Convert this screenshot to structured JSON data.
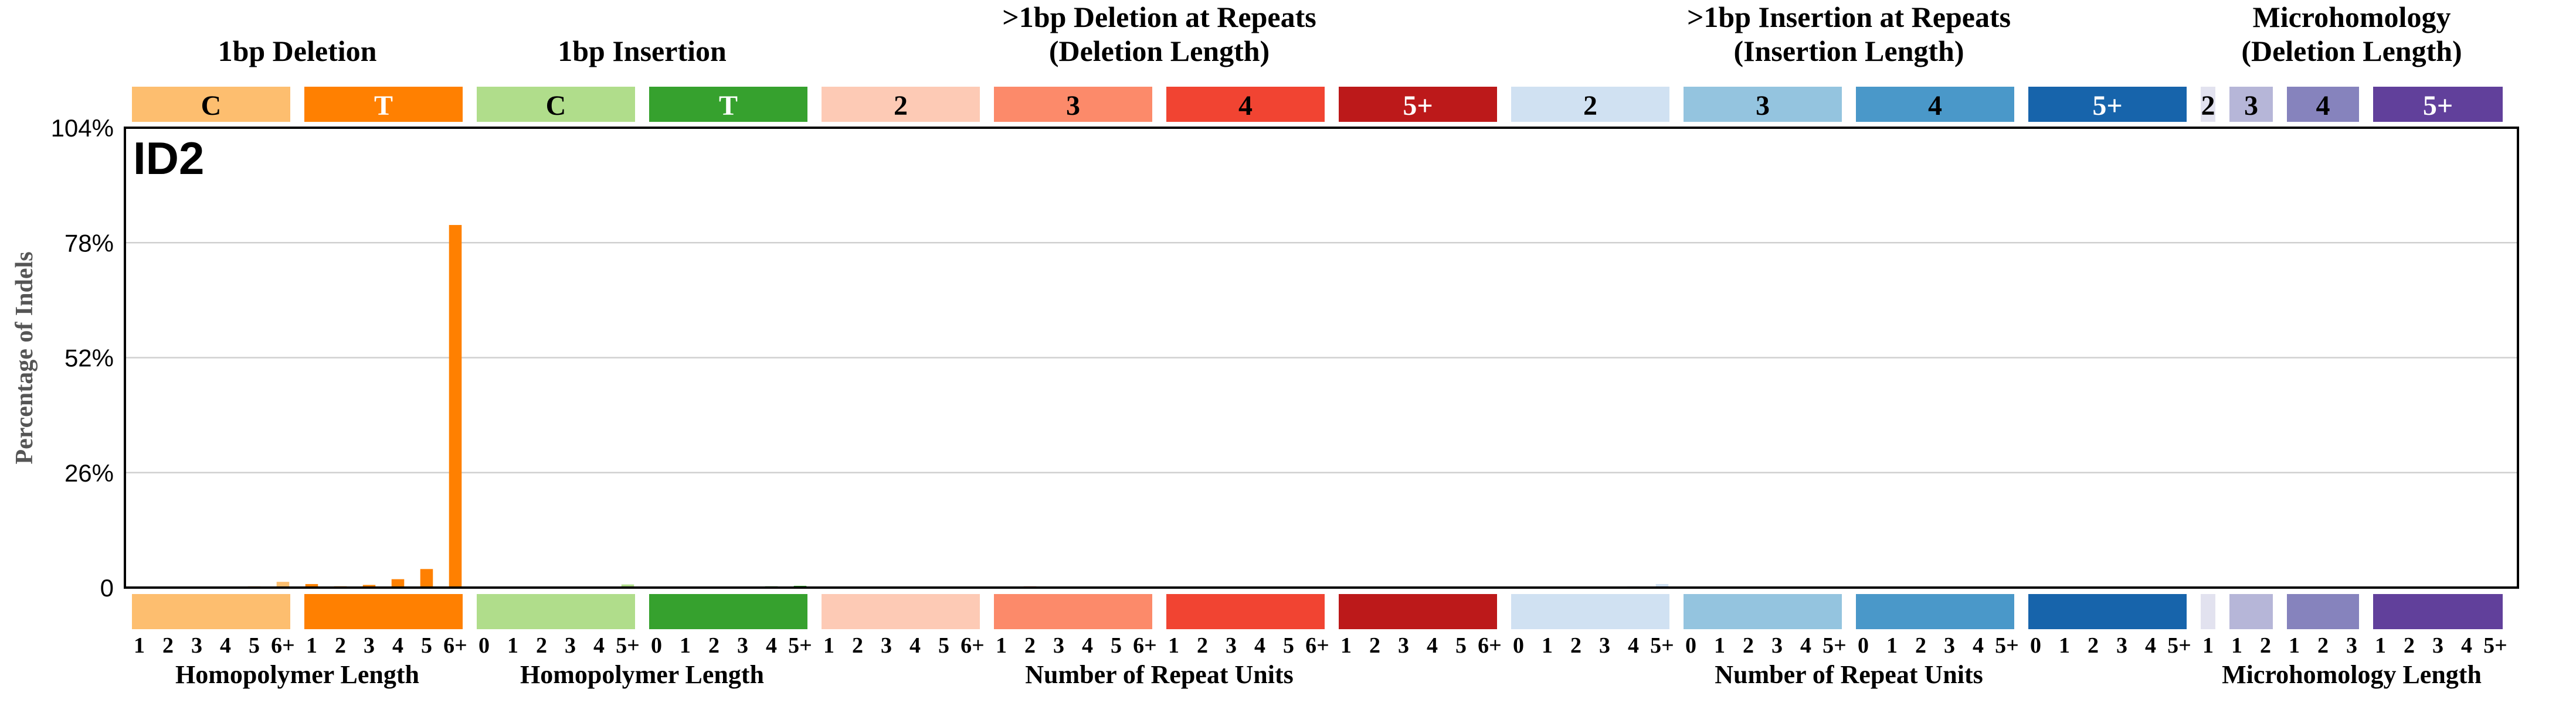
{
  "chart_data": {
    "type": "bar",
    "title": "ID2",
    "ylabel": "Percentage of Indels",
    "ylim": [
      0,
      104
    ],
    "yticks": [
      "0",
      "26%",
      "52%",
      "78%",
      "104%"
    ],
    "ytick_values": [
      0,
      26,
      52,
      78,
      104
    ],
    "grid": true,
    "groups": [
      {
        "header": "1bp Deletion",
        "header2": "",
        "bottom": "Homopolymer Length"
      },
      {
        "header": "1bp Insertion",
        "header2": "",
        "bottom": "Homopolymer Length"
      },
      {
        "header": ">1bp Deletion at Repeats",
        "header2": "(Deletion Length)",
        "bottom": "Number of Repeat Units"
      },
      {
        "header": ">1bp Insertion at Repeats",
        "header2": "(Insertion Length)",
        "bottom": "Number of Repeat Units"
      },
      {
        "header": "Microhomology",
        "header2": "(Deletion Length)",
        "bottom": "Microhomology Length"
      }
    ],
    "subgroups": [
      {
        "label": "C",
        "color": "#FDBE6F",
        "text_color": "#000000",
        "group": 0,
        "ticks": [
          "1",
          "2",
          "3",
          "4",
          "5",
          "6+"
        ],
        "values": [
          0.1,
          0.1,
          0.2,
          0.2,
          0.3,
          1.3
        ]
      },
      {
        "label": "T",
        "color": "#FF8001",
        "text_color": "#ffffff",
        "group": 0,
        "ticks": [
          "1",
          "2",
          "3",
          "4",
          "5",
          "6+"
        ],
        "values": [
          0.8,
          0.3,
          0.6,
          1.9,
          4.2,
          82.0
        ]
      },
      {
        "label": "C",
        "color": "#B0DD8B",
        "text_color": "#000000",
        "group": 1,
        "ticks": [
          "0",
          "1",
          "2",
          "3",
          "4",
          "5+"
        ],
        "values": [
          0.1,
          0.1,
          0.1,
          0.1,
          0.2,
          0.7
        ]
      },
      {
        "label": "T",
        "color": "#36A12E",
        "text_color": "#ffffff",
        "group": 1,
        "ticks": [
          "0",
          "1",
          "2",
          "3",
          "4",
          "5+"
        ],
        "values": [
          0.1,
          0.1,
          0.1,
          0.2,
          0.3,
          0.4
        ]
      },
      {
        "label": "2",
        "color": "#FDCAB5",
        "text_color": "#000000",
        "group": 2,
        "ticks": [
          "1",
          "2",
          "3",
          "4",
          "5",
          "6+"
        ],
        "values": [
          0.2,
          0.1,
          0.1,
          0.1,
          0.1,
          0.1
        ]
      },
      {
        "label": "3",
        "color": "#FC8A6A",
        "text_color": "#000000",
        "group": 2,
        "ticks": [
          "1",
          "2",
          "3",
          "4",
          "5",
          "6+"
        ],
        "values": [
          0.1,
          0.3,
          0.1,
          0.1,
          0.1,
          0.1
        ]
      },
      {
        "label": "4",
        "color": "#F14432",
        "text_color": "#000000",
        "group": 2,
        "ticks": [
          "1",
          "2",
          "3",
          "4",
          "5",
          "6+"
        ],
        "values": [
          0.1,
          0.1,
          0.2,
          0.1,
          0.1,
          0.1
        ]
      },
      {
        "label": "5+",
        "color": "#BC191A",
        "text_color": "#ffffff",
        "group": 2,
        "ticks": [
          "1",
          "2",
          "3",
          "4",
          "5",
          "6+"
        ],
        "values": [
          0.1,
          0.2,
          0.1,
          0.1,
          0.1,
          0.1
        ]
      },
      {
        "label": "2",
        "color": "#D0E1F2",
        "text_color": "#000000",
        "group": 3,
        "ticks": [
          "0",
          "1",
          "2",
          "3",
          "4",
          "5+"
        ],
        "values": [
          0.1,
          0.1,
          0.1,
          0.1,
          0.3,
          0.8
        ]
      },
      {
        "label": "3",
        "color": "#94C4DF",
        "text_color": "#000000",
        "group": 3,
        "ticks": [
          "0",
          "1",
          "2",
          "3",
          "4",
          "5+"
        ],
        "values": [
          0.2,
          0.1,
          0.1,
          0.1,
          0.1,
          0.1
        ]
      },
      {
        "label": "4",
        "color": "#4A98C9",
        "text_color": "#000000",
        "group": 3,
        "ticks": [
          "0",
          "1",
          "2",
          "3",
          "4",
          "5+"
        ],
        "values": [
          0.1,
          0.1,
          0.1,
          0.1,
          0.1,
          0.1
        ]
      },
      {
        "label": "5+",
        "color": "#1764AB",
        "text_color": "#ffffff",
        "group": 3,
        "ticks": [
          "0",
          "1",
          "2",
          "3",
          "4",
          "5+"
        ],
        "values": [
          0.1,
          0.1,
          0.1,
          0.1,
          0.1,
          0.1
        ]
      },
      {
        "label": "2",
        "color": "#E2E2EF",
        "text_color": "#000000",
        "group": 4,
        "ticks": [
          "1"
        ],
        "values": [
          0.1
        ]
      },
      {
        "label": "3",
        "color": "#B6B6D8",
        "text_color": "#000000",
        "group": 4,
        "ticks": [
          "1",
          "2"
        ],
        "values": [
          0.1,
          0.1
        ]
      },
      {
        "label": "4",
        "color": "#8683BD",
        "text_color": "#000000",
        "group": 4,
        "ticks": [
          "1",
          "2",
          "3"
        ],
        "values": [
          0.1,
          0.1,
          0.1
        ]
      },
      {
        "label": "5+",
        "color": "#61409B",
        "text_color": "#ffffff",
        "group": 4,
        "ticks": [
          "1",
          "2",
          "3",
          "4",
          "5+"
        ],
        "values": [
          0.1,
          0.1,
          0.1,
          0.1,
          0.1
        ]
      }
    ]
  }
}
